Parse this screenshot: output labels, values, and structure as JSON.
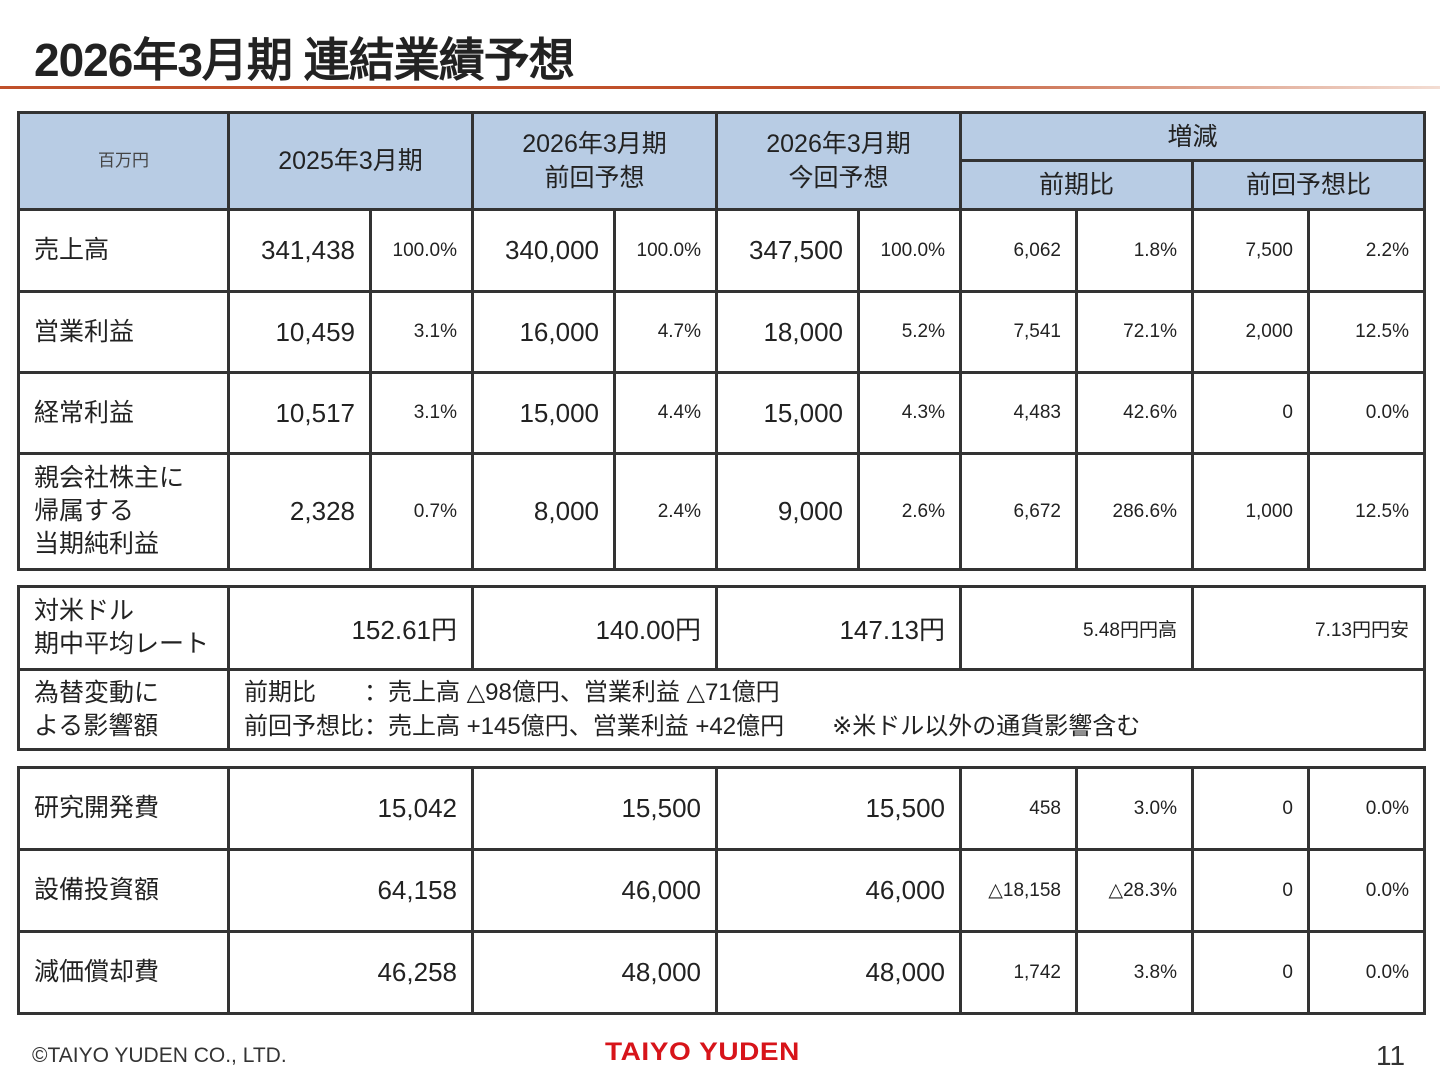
{
  "title": "2026年3月期 連結業績予想",
  "header": {
    "unit": "百万円",
    "fy2025": "2025年3月期",
    "prev_forecast": "2026年3月期\n前回予想",
    "curr_forecast": "2026年3月期\n今回予想",
    "change": "増減",
    "yoy": "前期比",
    "vs_prev": "前回予想比"
  },
  "results": [
    {
      "label": "売上高",
      "cells": [
        "341,438",
        "100.0%",
        "340,000",
        "100.0%",
        "347,500",
        "100.0%",
        "6,062",
        "1.8%",
        "7,500",
        "2.2%"
      ]
    },
    {
      "label": "営業利益",
      "cells": [
        "10,459",
        "3.1%",
        "16,000",
        "4.7%",
        "18,000",
        "5.2%",
        "7,541",
        "72.1%",
        "2,000",
        "12.5%"
      ]
    },
    {
      "label": "経常利益",
      "cells": [
        "10,517",
        "3.1%",
        "15,000",
        "4.4%",
        "15,000",
        "4.3%",
        "4,483",
        "42.6%",
        "0",
        "0.0%"
      ]
    },
    {
      "label": "親会社株主に\n帰属する\n当期純利益",
      "cells": [
        "2,328",
        "0.7%",
        "8,000",
        "2.4%",
        "9,000",
        "2.6%",
        "6,672",
        "286.6%",
        "1,000",
        "12.5%"
      ]
    }
  ],
  "fx": {
    "label": "対米ドル\n期中平均レート",
    "cells": [
      "152.61円",
      "140.00円",
      "147.13円",
      "5.48円円高",
      "7.13円円安"
    ],
    "impact_label": "為替変動に\nよる影響額",
    "impact_line1": "前期比　　：売上高 △98億円、営業利益 △71億円",
    "impact_line2": "前回予想比：売上高 +145億円、営業利益 +42億円　　※米ドル以外の通貨影響含む"
  },
  "expenses": [
    {
      "label": "研究開発費",
      "cells": [
        "15,042",
        "15,500",
        "15,500",
        "458",
        "3.0%",
        "0",
        "0.0%"
      ]
    },
    {
      "label": "設備投資額",
      "cells": [
        "64,158",
        "46,000",
        "46,000",
        "△18,158",
        "△28.3%",
        "0",
        "0.0%"
      ]
    },
    {
      "label": "減価償却費",
      "cells": [
        "46,258",
        "48,000",
        "48,000",
        "1,742",
        "3.8%",
        "0",
        "0.0%"
      ]
    }
  ],
  "footer": {
    "copyright": "©TAIYO YUDEN CO., LTD.",
    "logo": "TAIYO YUDEN",
    "page": "11"
  },
  "colors": {
    "header_bg": "#b8cce4",
    "accent_rule": "#c0502a",
    "logo": "#d7141a"
  }
}
